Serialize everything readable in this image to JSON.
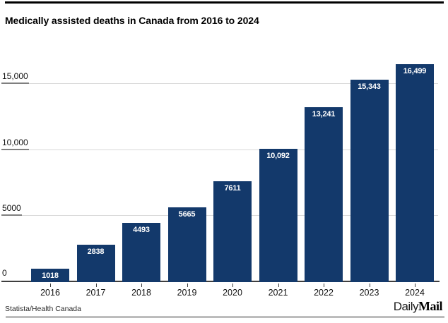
{
  "header": {
    "title": "Medically assisted deaths in Canada from 2016 to 2024"
  },
  "chart_data": {
    "type": "bar",
    "title": "Medically assisted deaths in Canada from 2016 to 2024",
    "categories": [
      "2016",
      "2017",
      "2018",
      "2019",
      "2020",
      "2021",
      "2022",
      "2023",
      "2024"
    ],
    "values": [
      1018,
      2838,
      4493,
      5665,
      7611,
      10092,
      13241,
      15343,
      16499
    ],
    "value_labels": [
      "1018",
      "2838",
      "4493",
      "5665",
      "7611",
      "10,092",
      "13,241",
      "15,343",
      "16,499"
    ],
    "yticks": [
      {
        "value": 0,
        "label": "0"
      },
      {
        "value": 5000,
        "label": "5000"
      },
      {
        "value": 10000,
        "label": "10,000"
      },
      {
        "value": 15000,
        "label": "15,000"
      }
    ],
    "ylim": [
      0,
      16810
    ],
    "xlabel": "",
    "ylabel": "",
    "grid": true,
    "legend_position": "none",
    "bar_color": "#13396b",
    "value_label_color": "#ffffff",
    "gridline_color": "#d8d8d8",
    "axis_color": "#3f3f3f"
  },
  "footer": {
    "source": "Statista/Health Canada",
    "brand_daily": "Daily",
    "brand_mail": "Mail"
  }
}
